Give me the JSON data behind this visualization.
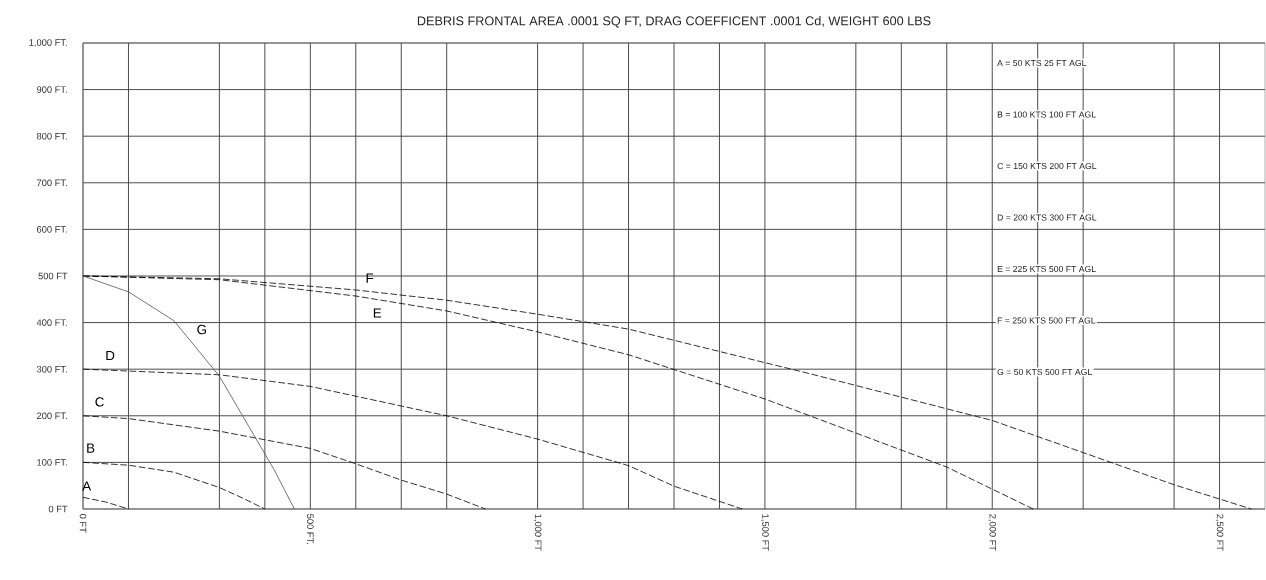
{
  "chart_data": {
    "type": "line",
    "title": "DEBRIS FRONTAL AREA .0001 SQ FT, DRAG COEFFICENT .0001 Cd, WEIGHT 600 LBS",
    "xlim": [
      0,
      2600
    ],
    "ylim": [
      0,
      1000
    ],
    "xticks": [
      {
        "value": 0,
        "label": "0 FT"
      },
      {
        "value": 100,
        "label": null
      },
      {
        "value": 300,
        "label": null
      },
      {
        "value": 400,
        "label": null
      },
      {
        "value": 500,
        "label": "500 FT."
      },
      {
        "value": 600,
        "label": null
      },
      {
        "value": 700,
        "label": null
      },
      {
        "value": 800,
        "label": null
      },
      {
        "value": 1000,
        "label": "1,000 FT"
      },
      {
        "value": 1100,
        "label": null
      },
      {
        "value": 1200,
        "label": null
      },
      {
        "value": 1300,
        "label": null
      },
      {
        "value": 1400,
        "label": null
      },
      {
        "value": 1500,
        "label": "1,500 FT"
      },
      {
        "value": 1700,
        "label": null
      },
      {
        "value": 1800,
        "label": null
      },
      {
        "value": 1900,
        "label": null
      },
      {
        "value": 2000,
        "label": "2,000 FT"
      },
      {
        "value": 2100,
        "label": null
      },
      {
        "value": 2200,
        "label": null
      },
      {
        "value": 2400,
        "label": null
      },
      {
        "value": 2500,
        "label": "2,500 FT"
      }
    ],
    "yticks": [
      {
        "value": 0,
        "label": "0 FT"
      },
      {
        "value": 100,
        "label": "100 FT."
      },
      {
        "value": 200,
        "label": "200 FT."
      },
      {
        "value": 300,
        "label": "300 FT."
      },
      {
        "value": 400,
        "label": "400 FT."
      },
      {
        "value": 500,
        "label": "500 FT"
      },
      {
        "value": 600,
        "label": "600 FT."
      },
      {
        "value": 700,
        "label": "700 FT."
      },
      {
        "value": 800,
        "label": "800 FT."
      },
      {
        "value": 900,
        "label": "900 FT."
      },
      {
        "value": 1000,
        "label": "1,000 FT."
      }
    ],
    "grid": true,
    "marker": "none",
    "line_style": "dashed",
    "series": [
      {
        "name": "A",
        "color": "#000000",
        "x": [
          0,
          50,
          100
        ],
        "values": [
          25,
          15,
          0
        ]
      },
      {
        "name": "B",
        "color": "#000000",
        "x": [
          0,
          100,
          200,
          300,
          350,
          400
        ],
        "values": [
          100,
          94,
          79,
          46,
          24,
          0
        ]
      },
      {
        "name": "C",
        "color": "#000000",
        "x": [
          0,
          100,
          300,
          500,
          600,
          700,
          800,
          885
        ],
        "values": [
          200,
          194,
          167,
          130,
          97,
          62,
          32,
          0
        ]
      },
      {
        "name": "D",
        "color": "#000000",
        "x": [
          0,
          300,
          500,
          600,
          800,
          1000,
          1200,
          1300,
          1450
        ],
        "values": [
          300,
          288,
          263,
          242,
          200,
          150,
          93,
          49,
          0
        ]
      },
      {
        "name": "E",
        "color": "#000000",
        "x": [
          0,
          300,
          600,
          800,
          1000,
          1200,
          1500,
          1700,
          1900,
          2090
        ],
        "values": [
          500,
          492,
          457,
          425,
          380,
          331,
          236,
          163,
          90,
          0
        ]
      },
      {
        "name": "F",
        "color": "#000000",
        "x": [
          0,
          300,
          600,
          800,
          1000,
          1200,
          1600,
          2000,
          2400,
          2570
        ],
        "values": [
          500,
          494,
          470,
          448,
          418,
          386,
          290,
          190,
          52,
          0
        ]
      },
      {
        "name": "G",
        "color": "#555555",
        "line_style": "solid",
        "x": [
          0,
          100,
          200,
          300,
          375,
          420,
          465
        ],
        "values": [
          500,
          466,
          404,
          285,
          160,
          85,
          0
        ]
      }
    ],
    "annotations": [
      "A = 50 KTS 25 FT AGL",
      "B = 100 KTS 100 FT AGL",
      "C = 150 KTS 200 FT AGL",
      "D = 200 KTS 300 FT AGL",
      "E = 225 KTS 500 FT AGL",
      "F = 250 KTS 500 FT AGL",
      "G = 50 KTS 500 FT AGL"
    ]
  }
}
